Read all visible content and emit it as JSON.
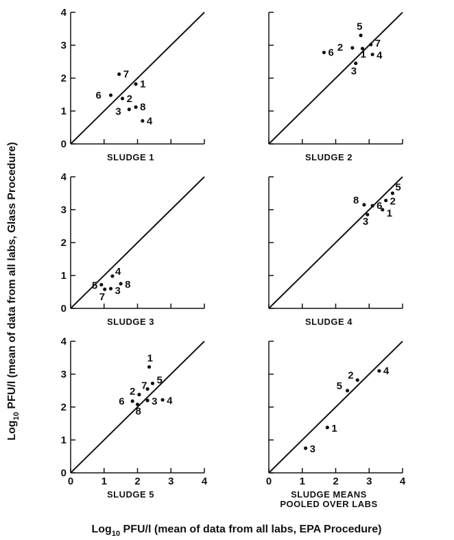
{
  "ylabel_prefix": "Log",
  "ylabel_sub": "10",
  "ylabel_rest": " PFU/l (mean of data from all labs, Glass Procedure)",
  "xlabel_prefix": "Log",
  "xlabel_sub": "10",
  "xlabel_rest": " PFU/l (mean of data from all labs, EPA Procedure)",
  "chart_data": [
    {
      "type": "scatter",
      "title": "SLUDGE 1",
      "xlim": [
        0,
        4
      ],
      "ylim": [
        0,
        4
      ],
      "x_ticks": [],
      "y_ticks": [
        "0",
        "1",
        "2",
        "3",
        "4"
      ],
      "diagonal": true,
      "points": [
        {
          "label": "7",
          "x": 1.45,
          "y": 2.12
        },
        {
          "label": "1",
          "x": 1.95,
          "y": 1.82
        },
        {
          "label": "6",
          "x": 1.2,
          "y": 1.48
        },
        {
          "label": "2",
          "x": 1.55,
          "y": 1.38
        },
        {
          "label": "8",
          "x": 1.95,
          "y": 1.12
        },
        {
          "label": "3",
          "x": 1.75,
          "y": 1.05
        },
        {
          "label": "4",
          "x": 2.15,
          "y": 0.7
        }
      ]
    },
    {
      "type": "scatter",
      "title": "SLUDGE 2",
      "xlim": [
        0,
        4
      ],
      "ylim": [
        0,
        4
      ],
      "x_ticks": [],
      "y_ticks": [],
      "diagonal": true,
      "points": [
        {
          "label": "5",
          "x": 2.75,
          "y": 3.3
        },
        {
          "label": "2",
          "x": 2.5,
          "y": 2.92
        },
        {
          "label": "7",
          "x": 3.05,
          "y": 3.02
        },
        {
          "label": "6",
          "x": 1.65,
          "y": 2.78
        },
        {
          "label": "1",
          "x": 2.8,
          "y": 2.9
        },
        {
          "label": "4",
          "x": 3.1,
          "y": 2.72
        },
        {
          "label": "3",
          "x": 2.6,
          "y": 2.45
        }
      ]
    },
    {
      "type": "scatter",
      "title": "SLUDGE 3",
      "xlim": [
        0,
        4
      ],
      "ylim": [
        0,
        4
      ],
      "x_ticks": [],
      "y_ticks": [
        "0",
        "1",
        "2",
        "3",
        "4"
      ],
      "diagonal": true,
      "points": [
        {
          "label": "4",
          "x": 1.25,
          "y": 0.98
        },
        {
          "label": "5",
          "x": 0.92,
          "y": 0.72
        },
        {
          "label": "8",
          "x": 1.5,
          "y": 0.75
        },
        {
          "label": "3",
          "x": 1.2,
          "y": 0.6
        },
        {
          "label": "7",
          "x": 1.02,
          "y": 0.58
        }
      ]
    },
    {
      "type": "scatter",
      "title": "SLUDGE 4",
      "xlim": [
        0,
        4
      ],
      "ylim": [
        0,
        4
      ],
      "x_ticks": [],
      "y_ticks": [],
      "diagonal": true,
      "points": [
        {
          "label": "5",
          "x": 3.7,
          "y": 3.5
        },
        {
          "label": "8",
          "x": 2.85,
          "y": 3.15
        },
        {
          "label": "2",
          "x": 3.5,
          "y": 3.28
        },
        {
          "label": "6",
          "x": 3.1,
          "y": 3.12
        },
        {
          "label": "1",
          "x": 3.4,
          "y": 3.0
        },
        {
          "label": "3",
          "x": 2.95,
          "y": 2.85
        }
      ]
    },
    {
      "type": "scatter",
      "title": "SLUDGE 5",
      "xlim": [
        0,
        4
      ],
      "ylim": [
        0,
        4
      ],
      "x_ticks": [
        "0",
        "1",
        "2",
        "3",
        "4"
      ],
      "y_ticks": [
        "0",
        "1",
        "2",
        "3",
        "4"
      ],
      "diagonal": true,
      "points": [
        {
          "label": "1",
          "x": 2.35,
          "y": 3.22
        },
        {
          "label": "5",
          "x": 2.45,
          "y": 2.72
        },
        {
          "label": "7",
          "x": 2.3,
          "y": 2.55
        },
        {
          "label": "2",
          "x": 2.05,
          "y": 2.38
        },
        {
          "label": "6",
          "x": 1.85,
          "y": 2.18
        },
        {
          "label": "3",
          "x": 2.3,
          "y": 2.2
        },
        {
          "label": "4",
          "x": 2.75,
          "y": 2.22
        },
        {
          "label": "8",
          "x": 2.0,
          "y": 2.08
        }
      ]
    },
    {
      "type": "scatter",
      "title": "SLUDGE MEANS",
      "title2": "POOLED OVER LABS",
      "xlim": [
        0,
        4
      ],
      "ylim": [
        0,
        4
      ],
      "x_ticks": [
        "0",
        "1",
        "2",
        "3",
        "4"
      ],
      "y_ticks": [],
      "diagonal": true,
      "points": [
        {
          "label": "4",
          "x": 3.3,
          "y": 3.1
        },
        {
          "label": "2",
          "x": 2.65,
          "y": 2.82
        },
        {
          "label": "5",
          "x": 2.35,
          "y": 2.5
        },
        {
          "label": "1",
          "x": 1.75,
          "y": 1.38
        },
        {
          "label": "3",
          "x": 1.1,
          "y": 0.75
        }
      ]
    }
  ]
}
